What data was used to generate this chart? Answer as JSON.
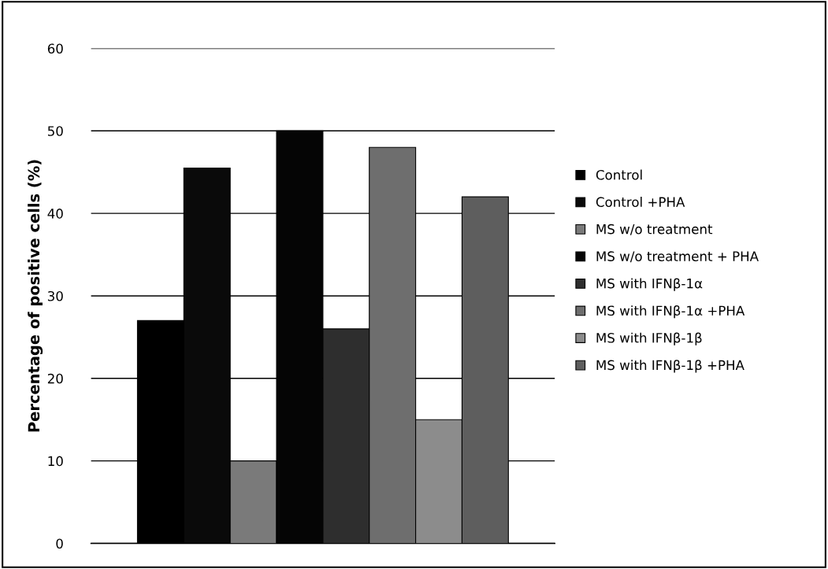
{
  "chart_data": {
    "type": "bar",
    "ylabel": "Percentage of positive cells (%)",
    "categories": [
      null
    ],
    "series": [
      {
        "name": "Control",
        "color": "#000000",
        "values": [
          27
        ]
      },
      {
        "name": "Control +PHA",
        "color": "#0a0a0a",
        "values": [
          45.5
        ]
      },
      {
        "name": "MS w/o treatment",
        "color": "#7a7a7a",
        "values": [
          10
        ]
      },
      {
        "name": "MS w/o treatment + PHA",
        "color": "#050505",
        "values": [
          50
        ]
      },
      {
        "name": "MS with IFNβ-1α",
        "color": "#2e2e2e",
        "values": [
          26
        ]
      },
      {
        "name": "MS with IFNβ-1α +PHA",
        "color": "#6e6e6e",
        "values": [
          48
        ]
      },
      {
        "name": "MS with IFNβ-1β",
        "color": "#8c8c8c",
        "values": [
          15
        ]
      },
      {
        "name": "MS with IFNβ-1β +PHA",
        "color": "#5e5e5e",
        "values": [
          42
        ]
      }
    ],
    "ylim": [
      0,
      60
    ],
    "yticks": [
      0,
      10,
      20,
      30,
      40,
      50,
      60
    ],
    "grid": "y",
    "legend": "right"
  }
}
